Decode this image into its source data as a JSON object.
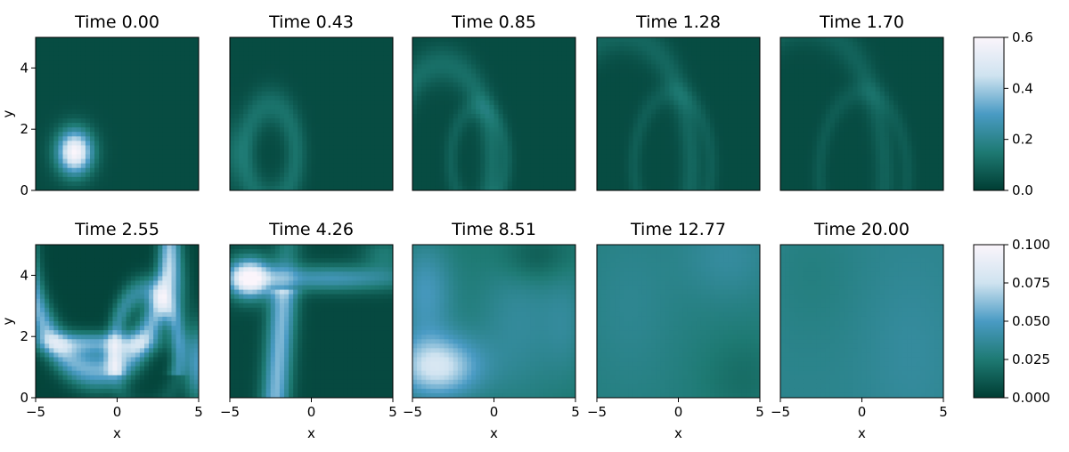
{
  "chart_data": {
    "type": "heatmap",
    "x_label": "x",
    "y_label": "y",
    "x_ticks": [
      "−5",
      "0",
      "5"
    ],
    "y_ticks": [
      "0",
      "2",
      "4"
    ],
    "x_range": [
      -5,
      5
    ],
    "y_range": [
      0,
      5
    ],
    "colormap": [
      "#003d33",
      "#1e7a73",
      "#4a9bc4",
      "#cfe3f0",
      "#fbf5fb"
    ],
    "rows": [
      {
        "colorbar": {
          "range": [
            0,
            0.6
          ],
          "ticks": [
            "0.0",
            "0.2",
            "0.4",
            "0.6"
          ]
        },
        "panels": [
          {
            "title": "Time 0.00",
            "kind": "gaussian",
            "center": [
              -2.6,
              1.25
            ],
            "value_peak": 0.6
          },
          {
            "title": "Time 0.43",
            "kind": "ring",
            "center": [
              -2.5,
              1.2
            ],
            "radius": 1.55,
            "value_peak": 0.12
          },
          {
            "title": "Time 0.85",
            "kind": "ring",
            "center": [
              -3.2,
              1.0
            ],
            "radius": 3.1,
            "value_peak": 0.11
          },
          {
            "title": "Time 1.28",
            "kind": "ring",
            "center": [
              -3.5,
              0.8
            ],
            "radius": 4.3,
            "value_peak": 0.09
          },
          {
            "title": "Time 1.70",
            "kind": "ring",
            "center": [
              -3.5,
              0.5
            ],
            "radius": 4.9,
            "value_peak": 0.08
          }
        ]
      },
      {
        "colorbar": {
          "range": [
            0,
            0.1
          ],
          "ticks": [
            "0.000",
            "0.025",
            "0.050",
            "0.075",
            "0.100"
          ]
        },
        "panels": [
          {
            "title": "Time 2.55",
            "kind": "bands",
            "value_peak": 0.1
          },
          {
            "title": "Time 4.26",
            "kind": "bands2",
            "value_peak": 0.1
          },
          {
            "title": "Time 8.51",
            "kind": "smooth",
            "value_peak": 0.07
          },
          {
            "title": "Time 12.77",
            "kind": "flat",
            "value_peak": 0.04
          },
          {
            "title": "Time 20.00",
            "kind": "flat2",
            "value_peak": 0.035
          }
        ]
      }
    ]
  }
}
